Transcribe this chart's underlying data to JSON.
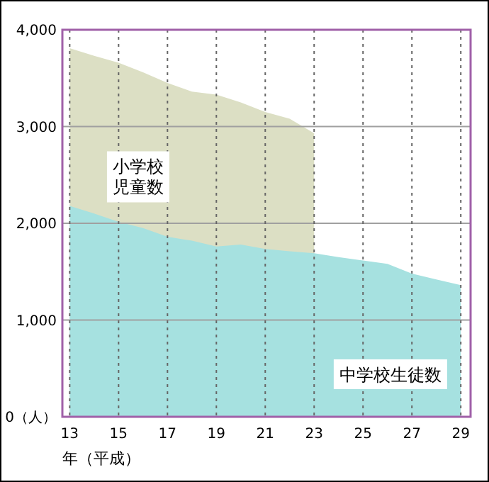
{
  "chart_data": {
    "type": "area",
    "xlabel": "年（平成）",
    "x": [
      13,
      14,
      15,
      16,
      17,
      18,
      19,
      20,
      21,
      22,
      23,
      24,
      25,
      26,
      27,
      28,
      29
    ],
    "series": [
      {
        "name": "小学校児童数",
        "color": "#dcdfc4",
        "x": [
          13,
          14,
          15,
          16,
          17,
          18,
          19,
          20,
          21,
          22,
          23
        ],
        "values": [
          3810,
          3730,
          3660,
          3560,
          3450,
          3360,
          3330,
          3250,
          3150,
          3080,
          2930
        ]
      },
      {
        "name": "中学校生徒数",
        "color": "#a6e1e0",
        "values": [
          2180,
          2100,
          2015,
          1950,
          1860,
          1820,
          1760,
          1780,
          1735,
          1710,
          1690,
          1650,
          1615,
          1580,
          1480,
          1420,
          1360
        ]
      }
    ],
    "xlim": [
      12.7,
      29.4
    ],
    "xticks": [
      13,
      15,
      17,
      19,
      21,
      23,
      25,
      27,
      29
    ],
    "ylim": [
      0,
      4000
    ],
    "yticks": [
      {
        "value": 0,
        "label": "0（人）"
      },
      {
        "value": 1000,
        "label": "1,000"
      },
      {
        "value": 2000,
        "label": "2,000"
      },
      {
        "value": 3000,
        "label": "3,000"
      },
      {
        "value": 4000,
        "label": "4,000"
      }
    ],
    "grid": true,
    "legend": false
  }
}
